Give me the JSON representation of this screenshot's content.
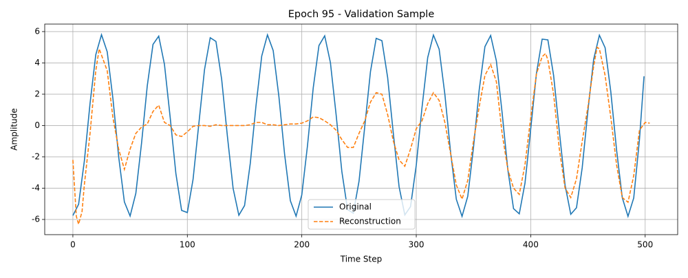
{
  "chart_data": {
    "type": "line",
    "title": "Epoch 95 - Validation Sample",
    "xlabel": "Time Step",
    "ylabel": "Amplitude",
    "xlim": [
      -24.6,
      528.4
    ],
    "ylim": [
      -6.97,
      6.48
    ],
    "xticks": [
      0,
      100,
      200,
      300,
      400,
      500
    ],
    "yticks": [
      -6,
      -4,
      -2,
      0,
      2,
      4,
      6
    ],
    "grid": true,
    "legend": "lower center",
    "series": [
      {
        "name": "Original",
        "color": "#1f77b4",
        "linestyle": "solid",
        "x": [
          0,
          5,
          10,
          15,
          20,
          25,
          30,
          35,
          40,
          45,
          50,
          55,
          60,
          65,
          70,
          75,
          80,
          85,
          90,
          95,
          100,
          105,
          110,
          115,
          120,
          125,
          130,
          135,
          140,
          145,
          150,
          155,
          160,
          165,
          170,
          175,
          180,
          185,
          190,
          195,
          200,
          205,
          210,
          215,
          220,
          225,
          230,
          235,
          240,
          245,
          250,
          255,
          260,
          265,
          270,
          275,
          280,
          285,
          290,
          295,
          300,
          305,
          310,
          315,
          320,
          325,
          330,
          335,
          340,
          345,
          350,
          355,
          360,
          365,
          370,
          375,
          380,
          385,
          390,
          395,
          400,
          405,
          410,
          415,
          420,
          425,
          430,
          435,
          440,
          445,
          450,
          455,
          460,
          465,
          470,
          475,
          480,
          485,
          490,
          495,
          499
        ],
        "values": [
          -5.75,
          -5.03,
          -2.28,
          1.41,
          4.52,
          5.8,
          4.71,
          1.71,
          -1.99,
          -4.88,
          -5.78,
          -4.33,
          -1.12,
          2.54,
          5.18,
          5.71,
          3.91,
          0.53,
          -3.07,
          -5.42,
          -5.56,
          -3.44,
          0.08,
          3.57,
          5.61,
          5.37,
          2.95,
          -0.68,
          -4.02,
          -5.73,
          -5.11,
          -2.41,
          1.28,
          4.44,
          5.79,
          4.79,
          1.85,
          -1.85,
          -4.8,
          -5.79,
          -4.43,
          -1.27,
          2.41,
          5.11,
          5.73,
          4.02,
          0.68,
          -2.94,
          -5.37,
          -5.6,
          -3.56,
          -0.07,
          3.45,
          5.57,
          5.42,
          3.07,
          -0.53,
          -3.91,
          -5.71,
          -5.18,
          -2.54,
          1.13,
          4.34,
          5.78,
          4.88,
          1.99,
          -1.71,
          -4.71,
          -5.8,
          -4.52,
          -1.41,
          2.28,
          5.04,
          5.75,
          4.13,
          0.83,
          -2.81,
          -5.31,
          -5.64,
          -3.68,
          -0.22,
          3.33,
          5.52,
          5.47,
          3.2,
          -0.37,
          -3.8,
          -5.67,
          -5.25,
          -2.69,
          0.97,
          4.23,
          5.77,
          4.97,
          2.14,
          -1.55,
          -4.61,
          -5.8,
          -4.63,
          -0.9,
          3.15
        ]
      },
      {
        "name": "Reconstruction",
        "color": "#ff7f0e",
        "linestyle": "dashed",
        "x": [
          0,
          3,
          5,
          8,
          10,
          15,
          20,
          23,
          25,
          30,
          35,
          40,
          45,
          50,
          55,
          60,
          65,
          70,
          75,
          80,
          85,
          90,
          95,
          100,
          105,
          110,
          115,
          120,
          125,
          130,
          135,
          140,
          145,
          150,
          155,
          160,
          165,
          170,
          175,
          180,
          185,
          190,
          195,
          200,
          205,
          210,
          215,
          220,
          225,
          230,
          235,
          240,
          245,
          250,
          255,
          260,
          265,
          270,
          275,
          280,
          285,
          290,
          295,
          300,
          305,
          310,
          315,
          320,
          325,
          330,
          335,
          340,
          345,
          350,
          355,
          360,
          365,
          370,
          375,
          380,
          385,
          390,
          395,
          400,
          405,
          410,
          413,
          415,
          420,
          425,
          430,
          435,
          440,
          445,
          450,
          455,
          458,
          460,
          465,
          470,
          475,
          480,
          485,
          490,
          495,
          500,
          504
        ],
        "values": [
          -2.2,
          -5.8,
          -6.3,
          -5.5,
          -3.8,
          -0.5,
          3.5,
          4.9,
          4.5,
          3.5,
          0.5,
          -1.5,
          -2.8,
          -1.5,
          -0.5,
          -0.1,
          0.1,
          0.9,
          1.3,
          0.2,
          0,
          -0.6,
          -0.7,
          -0.4,
          -0.05,
          0,
          0,
          -0.05,
          0.05,
          0,
          0,
          0,
          0,
          0,
          0.05,
          0.2,
          0.2,
          0.05,
          0.05,
          0,
          0.05,
          0.1,
          0.1,
          0.15,
          0.3,
          0.55,
          0.5,
          0.3,
          0.05,
          -0.3,
          -0.9,
          -1.4,
          -1.4,
          -0.5,
          0.3,
          1.5,
          2.1,
          2.0,
          0.7,
          -1.0,
          -2.2,
          -2.6,
          -1.5,
          -0.2,
          0.3,
          1.4,
          2.1,
          1.6,
          0.2,
          -1.8,
          -3.8,
          -4.7,
          -3.5,
          -1.0,
          1.2,
          3.2,
          3.9,
          2.8,
          -0.5,
          -2.8,
          -4.0,
          -4.4,
          -2.5,
          0.5,
          3.3,
          4.4,
          4.6,
          4.2,
          2.0,
          -1.5,
          -4.0,
          -4.6,
          -3.4,
          -1.0,
          1.2,
          3.8,
          5.0,
          4.9,
          3.2,
          0.5,
          -2.5,
          -4.6,
          -4.9,
          -3.2,
          -0.3,
          0.2,
          0.15
        ]
      }
    ]
  }
}
